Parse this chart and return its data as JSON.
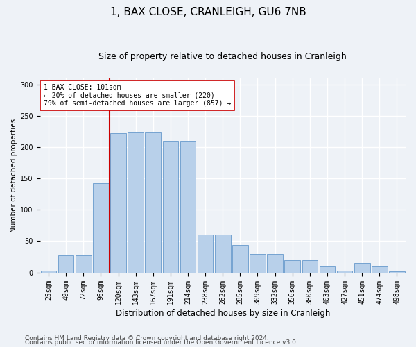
{
  "title": "1, BAX CLOSE, CRANLEIGH, GU6 7NB",
  "subtitle": "Size of property relative to detached houses in Cranleigh",
  "xlabel": "Distribution of detached houses by size in Cranleigh",
  "ylabel": "Number of detached properties",
  "categories": [
    "25sqm",
    "49sqm",
    "72sqm",
    "96sqm",
    "120sqm",
    "143sqm",
    "167sqm",
    "191sqm",
    "214sqm",
    "238sqm",
    "262sqm",
    "285sqm",
    "309sqm",
    "332sqm",
    "356sqm",
    "380sqm",
    "403sqm",
    "427sqm",
    "451sqm",
    "474sqm",
    "498sqm"
  ],
  "values": [
    3,
    27,
    27,
    142,
    222,
    224,
    224,
    210,
    210,
    60,
    60,
    44,
    30,
    30,
    19,
    19,
    10,
    3,
    15,
    9,
    2
  ],
  "bar_color": "#b8d0ea",
  "bar_edge_color": "#6699cc",
  "vline_x_index": 3.5,
  "vline_color": "#cc0000",
  "annotation_text": "1 BAX CLOSE: 101sqm\n← 20% of detached houses are smaller (220)\n79% of semi-detached houses are larger (857) →",
  "annotation_box_color": "white",
  "annotation_box_edge": "#cc0000",
  "ylim": [
    0,
    310
  ],
  "yticks": [
    0,
    50,
    100,
    150,
    200,
    250,
    300
  ],
  "footer1": "Contains HM Land Registry data © Crown copyright and database right 2024.",
  "footer2": "Contains public sector information licensed under the Open Government Licence v3.0.",
  "background_color": "#eef2f7",
  "grid_color": "#ffffff",
  "title_fontsize": 11,
  "subtitle_fontsize": 9,
  "xlabel_fontsize": 8.5,
  "ylabel_fontsize": 7.5,
  "tick_fontsize": 7,
  "annotation_fontsize": 7,
  "footer_fontsize": 6.5
}
